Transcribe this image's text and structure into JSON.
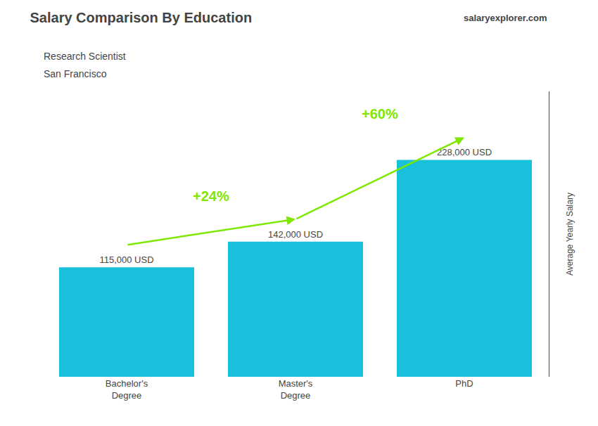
{
  "chart_data": {
    "type": "bar",
    "title": "Salary Comparison By Education",
    "subtitle": [
      "Research Scientist",
      "San Francisco"
    ],
    "categories": [
      "Bachelor's\nDegree",
      "Master's\nDegree",
      "PhD"
    ],
    "values": [
      115000,
      142000,
      228000
    ],
    "value_labels": [
      "115,000 USD",
      "142,000 USD",
      "228,000 USD"
    ],
    "data_labels": true,
    "color": "#18C0DC",
    "ylabel": "Average Yearly Salary",
    "ylim": [
      0,
      300000
    ],
    "tick_labels": "x",
    "grid": false,
    "annotations": [
      {
        "text": "+24%",
        "from": "Bachelor's\nDegree",
        "to": "Master's\nDegree",
        "color": "#7FE800"
      },
      {
        "text": "+60%",
        "from": "Master's\nDegree",
        "to": "PhD",
        "color": "#7FE800"
      },
      {
        "text": "salaryexplorer.com"
      }
    ]
  }
}
